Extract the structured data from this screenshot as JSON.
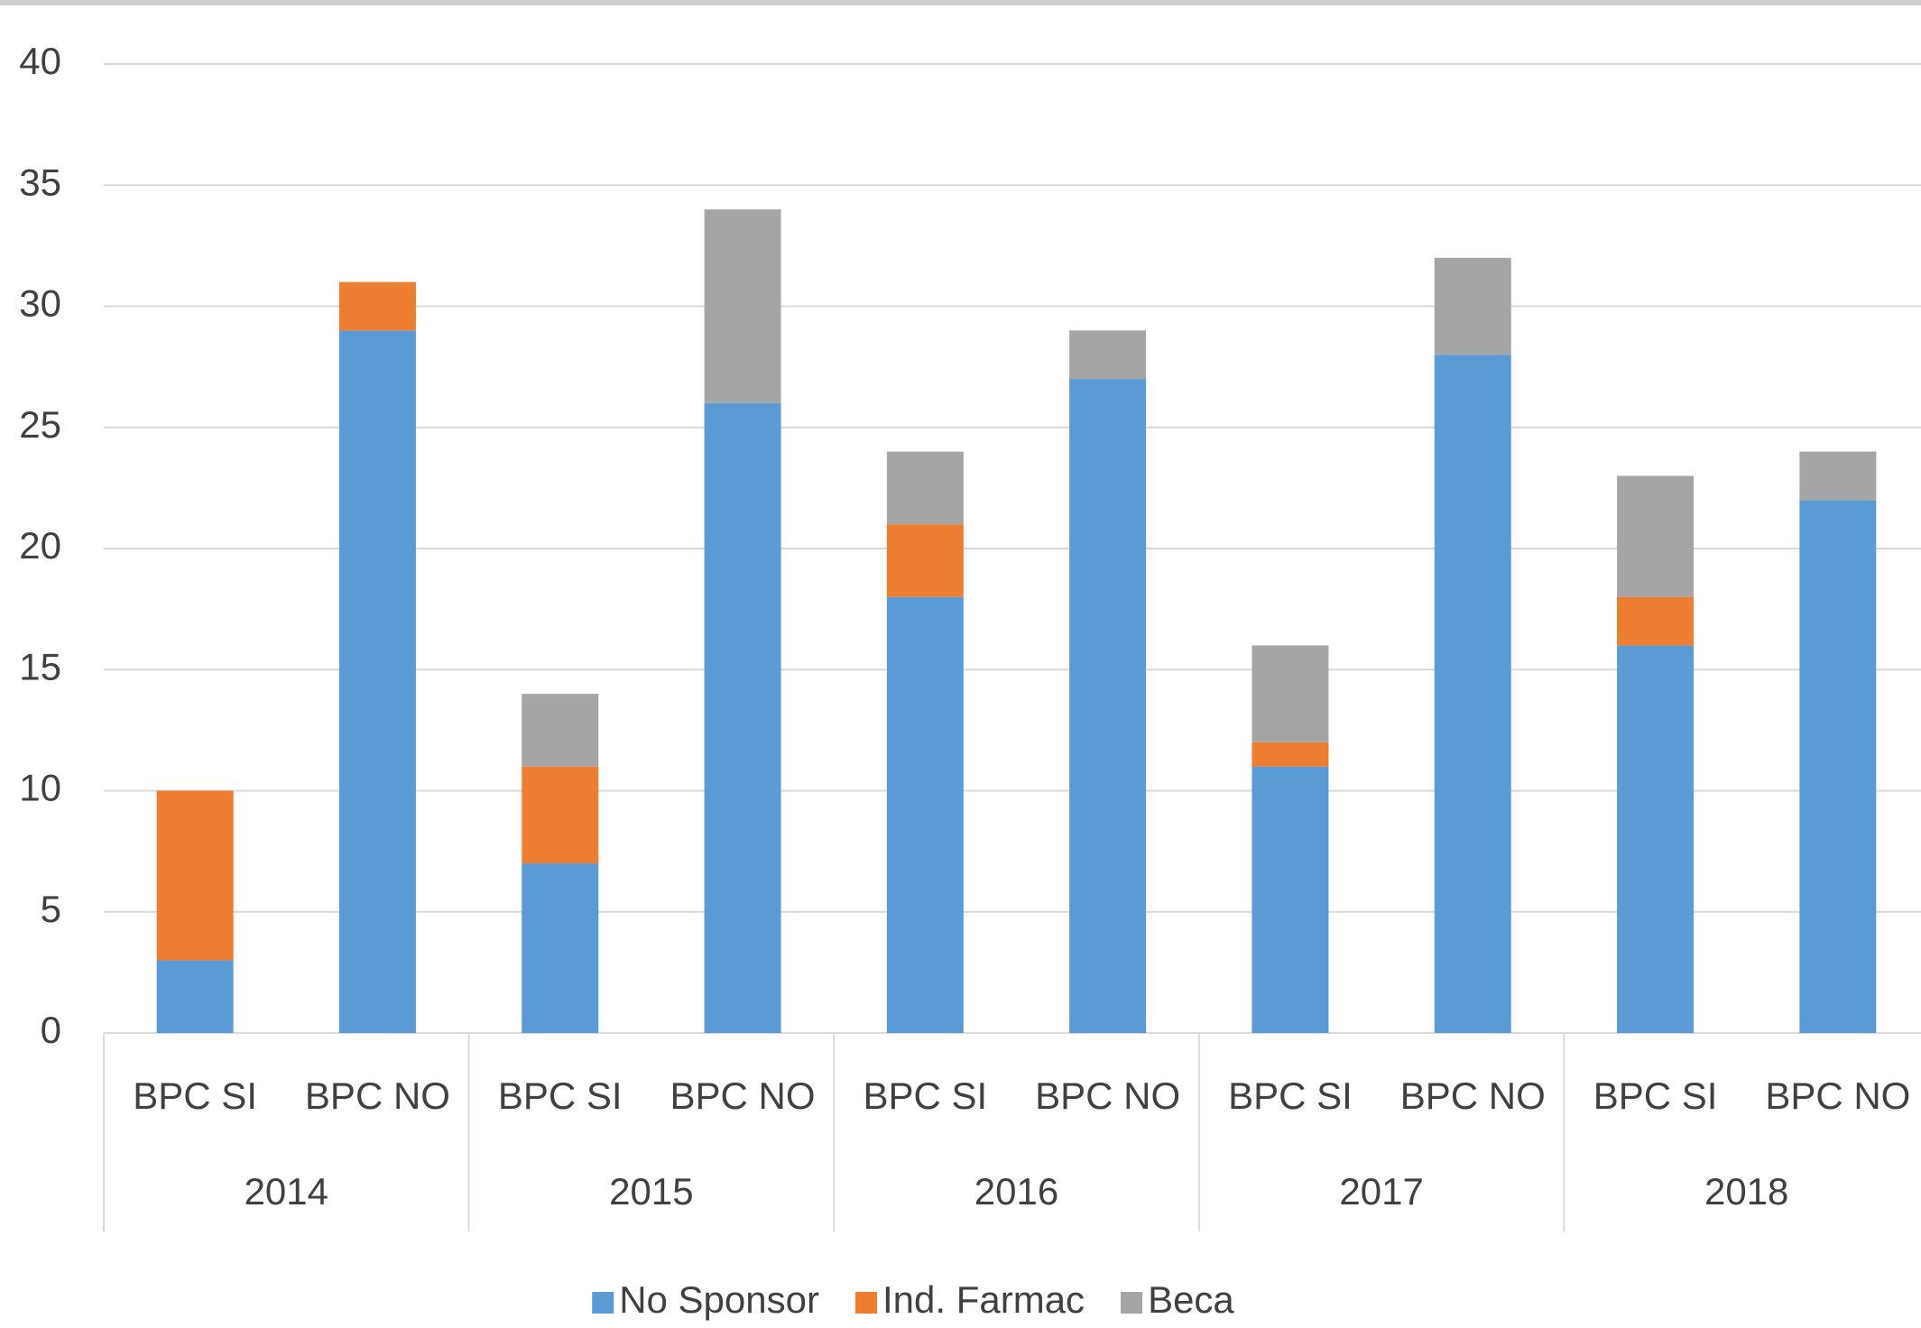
{
  "chart_data": {
    "type": "stacked_bar",
    "categories": [
      "BPC SI",
      "BPC NO",
      "BPC SI",
      "BPC NO",
      "BPC SI",
      "BPC NO",
      "BPC SI",
      "BPC NO",
      "BPC SI",
      "BPC NO"
    ],
    "groups": [
      "2014",
      "2015",
      "2016",
      "2017",
      "2018"
    ],
    "series": [
      {
        "name": "No Sponsor",
        "color": "#5b9bd5",
        "values": [
          3,
          29,
          7,
          26,
          18,
          27,
          11,
          28,
          16,
          22
        ]
      },
      {
        "name": "Ind. Farmac",
        "color": "#ed7d31",
        "values": [
          7,
          2,
          4,
          0,
          3,
          0,
          1,
          0,
          2,
          0
        ]
      },
      {
        "name": "Beca",
        "color": "#a5a5a5",
        "values": [
          0,
          0,
          3,
          8,
          3,
          2,
          4,
          4,
          5,
          2
        ]
      }
    ],
    "ylim": [
      0,
      40
    ],
    "yticks": [
      0,
      5,
      10,
      15,
      20,
      25,
      30,
      35,
      40
    ],
    "grid": true,
    "legend": "bottom"
  }
}
